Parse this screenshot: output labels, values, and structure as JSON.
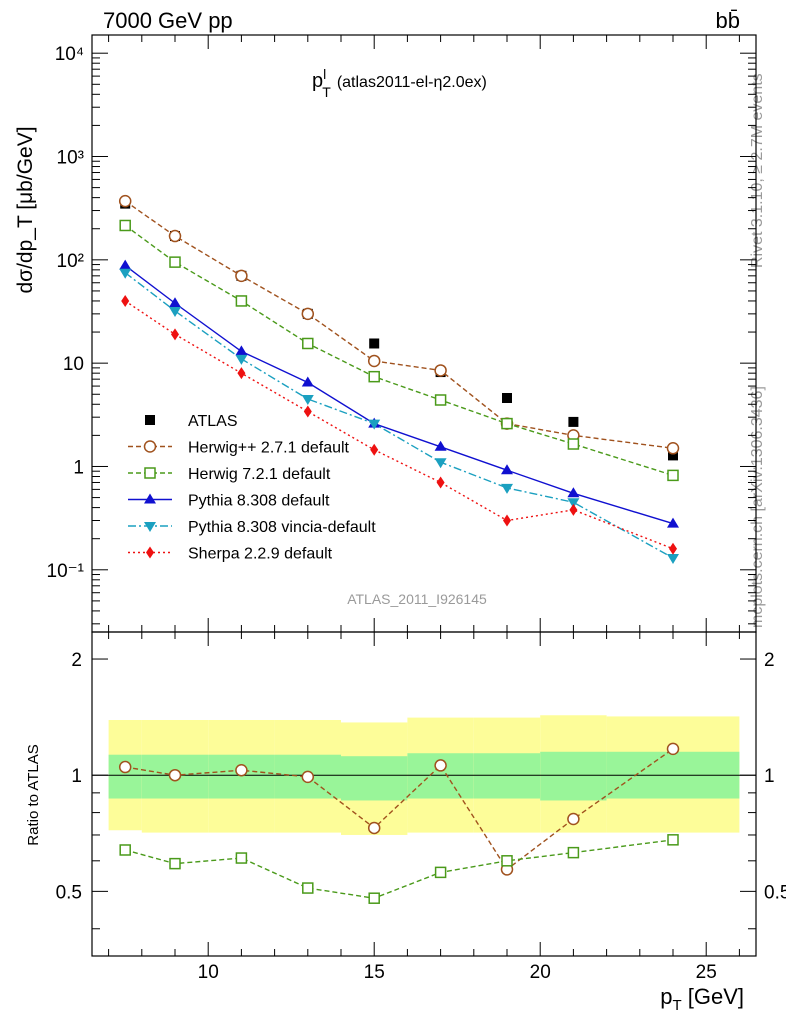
{
  "header": {
    "beam": "7000 GeV pp",
    "process": "bb̄"
  },
  "side_labels": {
    "rivet": "Rivet 3.1.10, ≥ 2.7M events",
    "site": "mcplots.cern.ch [arXiv:1306.3436]"
  },
  "chart_data": [
    {
      "type": "scatter",
      "panel": "main",
      "title_main": "p",
      "title_sup": "l",
      "title_sub": "T",
      "title_rest": "(atlas2011-el-η2.0ex)",
      "ylabel": "dσ/dp_T [μb/GeV]",
      "analysis_tag": "ATLAS_2011_I926145",
      "y_scale": "log",
      "ylim": [
        0.025,
        15000
      ],
      "xlim": [
        6.5,
        26.5
      ],
      "ytick_labels": [
        "10⁻¹",
        "1",
        "10",
        "10²",
        "10³",
        "10⁴"
      ],
      "x": [
        7.5,
        9,
        11,
        13,
        15,
        17,
        19,
        21,
        24
      ],
      "series": [
        {
          "name": "ATLAS",
          "color": "#000000",
          "marker": "square-filled",
          "line": "none",
          "values": [
            350,
            170,
            70,
            30,
            15.5,
            8.2,
            4.6,
            2.7,
            1.28
          ]
        },
        {
          "name": "Herwig++ 2.7.1 default",
          "color": "#a0521e",
          "marker": "circle-open",
          "line": "dashed",
          "values": [
            370,
            170,
            70,
            30,
            10.5,
            8.5,
            2.6,
            2.0,
            1.5
          ]
        },
        {
          "name": "Herwig 7.2.1 default",
          "color": "#4a9a1a",
          "marker": "square-open",
          "line": "dashed",
          "values": [
            215,
            95,
            40,
            15.5,
            7.4,
            4.4,
            2.6,
            1.65,
            0.82
          ]
        },
        {
          "name": "Pythia 8.308 default",
          "color": "#1010d0",
          "marker": "triangle-up",
          "line": "solid",
          "values": [
            88,
            38,
            13,
            6.5,
            2.6,
            1.55,
            0.92,
            0.55,
            0.28
          ]
        },
        {
          "name": "Pythia 8.308 vincia-default",
          "color": "#1ba0c0",
          "marker": "triangle-down",
          "line": "dashdot",
          "values": [
            75,
            32,
            11,
            4.5,
            2.6,
            1.1,
            0.62,
            0.45,
            0.13
          ]
        },
        {
          "name": "Sherpa 2.2.9 default",
          "color": "#ee1111",
          "marker": "diamond",
          "line": "dotted",
          "values": [
            40,
            19,
            8,
            3.4,
            1.45,
            0.7,
            0.3,
            0.38,
            0.16
          ]
        }
      ]
    },
    {
      "type": "scatter",
      "panel": "ratio",
      "ylabel": "Ratio to ATLAS",
      "xlabel": "p_T [GeV]",
      "xlim": [
        6.5,
        26.5
      ],
      "ylim": [
        0.34,
        2.35
      ],
      "xtick_labels": [
        "10",
        "15",
        "20",
        "25"
      ],
      "ytick_labels": [
        "0.5",
        "1",
        "2"
      ],
      "bands": [
        {
          "x_edges": [
            7,
            8,
            10,
            12,
            14,
            16,
            18,
            20,
            22,
            26
          ],
          "inner": [
            [
              0.87,
              1.13
            ],
            [
              0.87,
              1.13
            ],
            [
              0.87,
              1.13
            ],
            [
              0.87,
              1.13
            ],
            [
              0.86,
              1.12
            ],
            [
              0.87,
              1.14
            ],
            [
              0.87,
              1.14
            ],
            [
              0.86,
              1.15
            ],
            [
              0.87,
              1.15
            ]
          ],
          "outer": [
            [
              0.72,
              1.39
            ],
            [
              0.71,
              1.39
            ],
            [
              0.71,
              1.39
            ],
            [
              0.71,
              1.39
            ],
            [
              0.7,
              1.37
            ],
            [
              0.71,
              1.41
            ],
            [
              0.71,
              1.41
            ],
            [
              0.71,
              1.43
            ],
            [
              0.71,
              1.42
            ]
          ],
          "inner_color": "#99f599",
          "outer_color": "#fdfd99"
        }
      ],
      "x": [
        7.5,
        9,
        11,
        13,
        15,
        17,
        19,
        21,
        24
      ],
      "series": [
        {
          "name": "Herwig++ 2.7.1 default",
          "color": "#a0521e",
          "marker": "circle-open",
          "values": [
            1.05,
            1.0,
            1.03,
            0.99,
            0.73,
            1.06,
            0.57,
            0.77,
            1.17
          ]
        },
        {
          "name": "Herwig 7.2.1 default",
          "color": "#4a9a1a",
          "marker": "square-open",
          "values": [
            0.64,
            0.59,
            0.61,
            0.51,
            0.48,
            0.56,
            0.6,
            0.63,
            0.68
          ]
        }
      ]
    }
  ]
}
